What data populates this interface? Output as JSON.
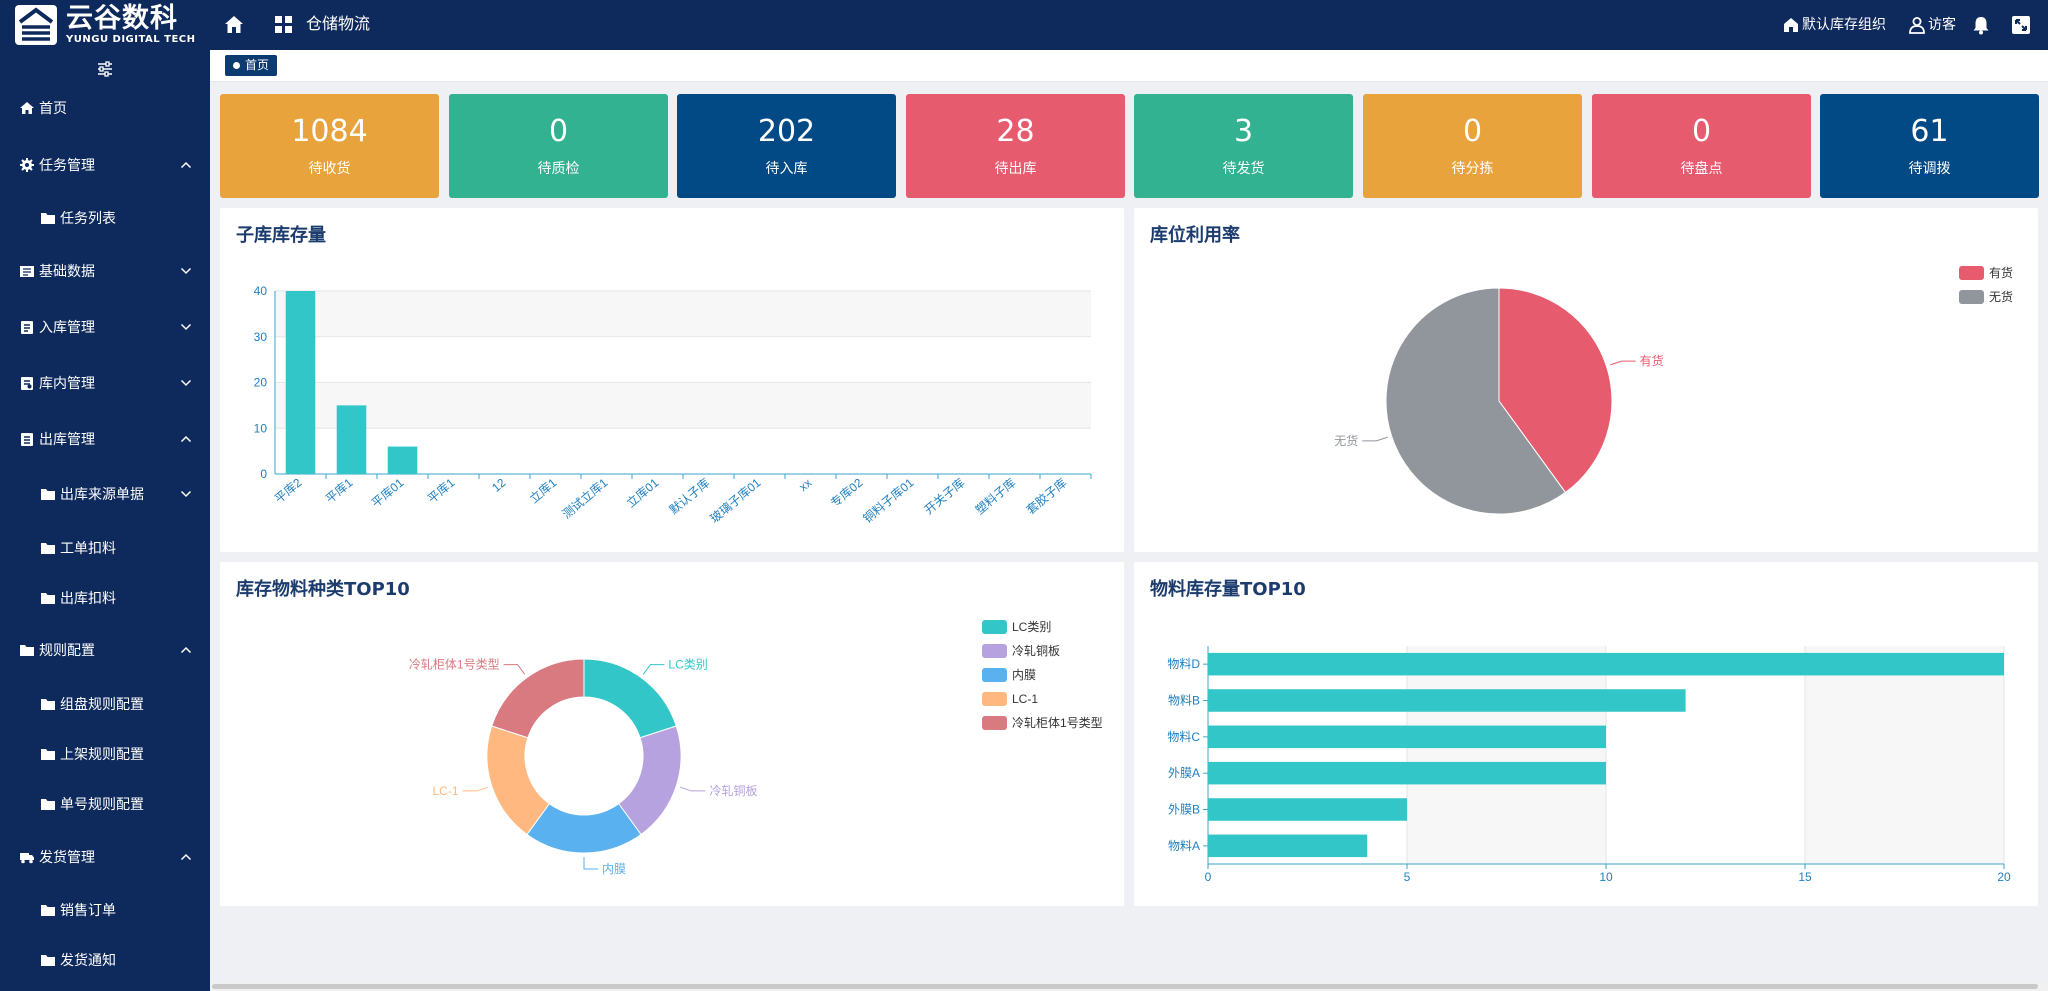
{
  "brand": {
    "name_cn": "云谷数科",
    "name_en": "YUNGU DIGITAL TECH"
  },
  "header": {
    "app_title": "仓储物流",
    "org_label": "默认库存组织",
    "user_label": "访客"
  },
  "breadcrumb": {
    "home_label": "首页"
  },
  "sidebar": {
    "items": [
      {
        "label": "首页",
        "icon": "home-icon",
        "level": 1,
        "expanded": null
      },
      {
        "label": "任务管理",
        "icon": "gear-icon",
        "level": 1,
        "expanded": true
      },
      {
        "label": "任务列表",
        "icon": "folder-icon",
        "level": 2,
        "expanded": null
      },
      {
        "label": "基础数据",
        "icon": "database-icon",
        "level": 1,
        "expanded": false
      },
      {
        "label": "入库管理",
        "icon": "inbound-icon",
        "level": 1,
        "expanded": false
      },
      {
        "label": "库内管理",
        "icon": "warehouse-doc-icon",
        "level": 1,
        "expanded": false
      },
      {
        "label": "出库管理",
        "icon": "outbound-icon",
        "level": 1,
        "expanded": true
      },
      {
        "label": "出库来源单据",
        "icon": "folder-icon",
        "level": 2,
        "expanded": false
      },
      {
        "label": "工单扣料",
        "icon": "folder-icon",
        "level": 2,
        "expanded": null
      },
      {
        "label": "出库扣料",
        "icon": "folder-icon",
        "level": 2,
        "expanded": null
      },
      {
        "label": "规则配置",
        "icon": "folder-icon",
        "level": 1,
        "expanded": true
      },
      {
        "label": "组盘规则配置",
        "icon": "folder-icon",
        "level": 2,
        "expanded": null
      },
      {
        "label": "上架规则配置",
        "icon": "folder-icon",
        "level": 2,
        "expanded": null
      },
      {
        "label": "单号规则配置",
        "icon": "folder-icon",
        "level": 2,
        "expanded": null
      },
      {
        "label": "发货管理",
        "icon": "truck-icon",
        "level": 1,
        "expanded": true
      },
      {
        "label": "销售订单",
        "icon": "folder-icon",
        "level": 2,
        "expanded": null
      },
      {
        "label": "发货通知",
        "icon": "folder-icon",
        "level": 2,
        "expanded": null
      }
    ]
  },
  "stats": [
    {
      "value": "1084",
      "label": "待收货",
      "color": "#e8a33d"
    },
    {
      "value": "0",
      "label": "待质检",
      "color": "#32b291"
    },
    {
      "value": "202",
      "label": "待入库",
      "color": "#024a86"
    },
    {
      "value": "28",
      "label": "待出库",
      "color": "#e75b6e"
    },
    {
      "value": "3",
      "label": "待发货",
      "color": "#32b291"
    },
    {
      "value": "0",
      "label": "待分拣",
      "color": "#e8a33d"
    },
    {
      "value": "0",
      "label": "待盘点",
      "color": "#e75b6e"
    },
    {
      "value": "61",
      "label": "待调拨",
      "color": "#024a86"
    }
  ],
  "panels": {
    "sub_stock_title": "子库库存量",
    "location_util_title": "库位利用率",
    "material_types_title": "库存物料种类TOP10",
    "material_stock_title": "物料库存量TOP10"
  },
  "chart_data": [
    {
      "type": "bar",
      "title": "子库库存量",
      "categories": [
        "平库2",
        "平库1",
        "平库01",
        "平库1",
        "12",
        "立库1",
        "测试立库1",
        "立库01",
        "默认子库",
        "玻璃子库01",
        "xx",
        "专库02",
        "铜料子库01",
        "开关子库",
        "塑料子库",
        "套胶子库"
      ],
      "values": [
        40,
        15,
        6,
        0,
        0,
        0,
        0,
        0,
        0,
        0,
        0,
        0,
        0,
        0,
        0,
        0
      ],
      "ylim": [
        0,
        40
      ],
      "yticks": [
        0,
        10,
        20,
        30,
        40
      ],
      "color": "#33c6c9"
    },
    {
      "type": "pie",
      "title": "库位利用率",
      "labels": [
        "有货",
        "无货"
      ],
      "values": [
        40,
        60
      ],
      "colors": [
        "#e75b6e",
        "#91959c"
      ],
      "legend": "top-right"
    },
    {
      "type": "pie",
      "title": "库存物料种类TOP10",
      "labels": [
        "LC类别",
        "冷轧铜板",
        "内膜",
        "LC-1",
        "冷轧柜体1号类型"
      ],
      "values": [
        20,
        20,
        20,
        20,
        20
      ],
      "colors": [
        "#33c6c9",
        "#b6a2de",
        "#5ab1ef",
        "#ffb980",
        "#d87a80"
      ],
      "donut": true,
      "legend": "top-right"
    },
    {
      "type": "bar",
      "orientation": "horizontal",
      "title": "物料库存量TOP10",
      "categories": [
        "物料D",
        "物料B",
        "物料C",
        "外膜A",
        "外膜B",
        "物料A"
      ],
      "values": [
        20,
        12,
        10,
        10,
        5,
        4
      ],
      "xlim": [
        0,
        20
      ],
      "xticks": [
        0,
        5,
        10,
        15,
        20
      ],
      "color": "#33c6c9"
    }
  ]
}
